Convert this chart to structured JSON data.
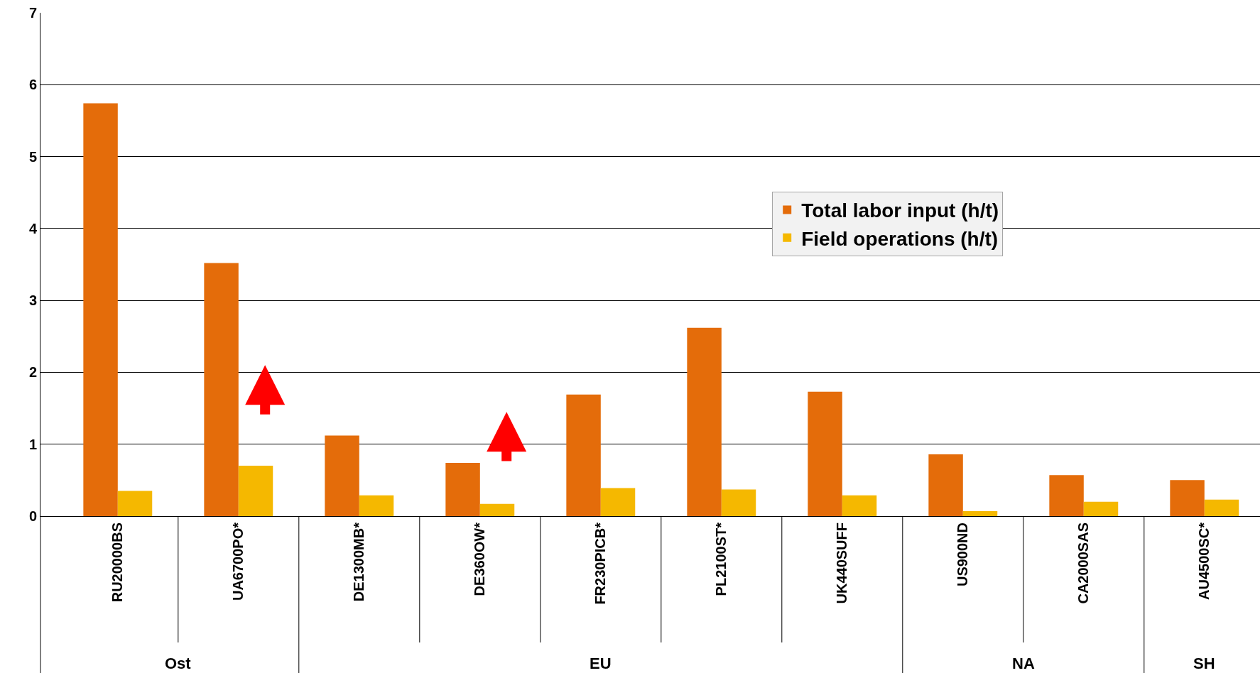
{
  "chart_data": {
    "type": "bar",
    "categories": [
      "RU20000BS",
      "UA6700PO*",
      "DE1300MB*",
      "DE360OW*",
      "FR230PICB*",
      "PL2100ST*",
      "UK440SUFF",
      "US900ND",
      "CA2000SAS",
      "AU4500SC*"
    ],
    "series": [
      {
        "name": "Total labor input (h/t)",
        "color": "#e46c0a",
        "values": [
          5.74,
          3.52,
          1.12,
          0.74,
          1.69,
          2.62,
          1.73,
          0.86,
          0.57,
          0.5
        ]
      },
      {
        "name": "Field operations (h/t)",
        "color": "#f5b800",
        "values": [
          0.35,
          0.7,
          0.29,
          0.17,
          0.39,
          0.37,
          0.29,
          0.07,
          0.2,
          0.23
        ]
      }
    ],
    "ylim": [
      0,
      7
    ],
    "yticks": [
      0,
      1,
      2,
      3,
      4,
      5,
      6,
      7
    ],
    "grid": "y",
    "legend": "right",
    "annotations": [
      "Ost",
      "EU",
      "NA",
      "SH"
    ]
  }
}
